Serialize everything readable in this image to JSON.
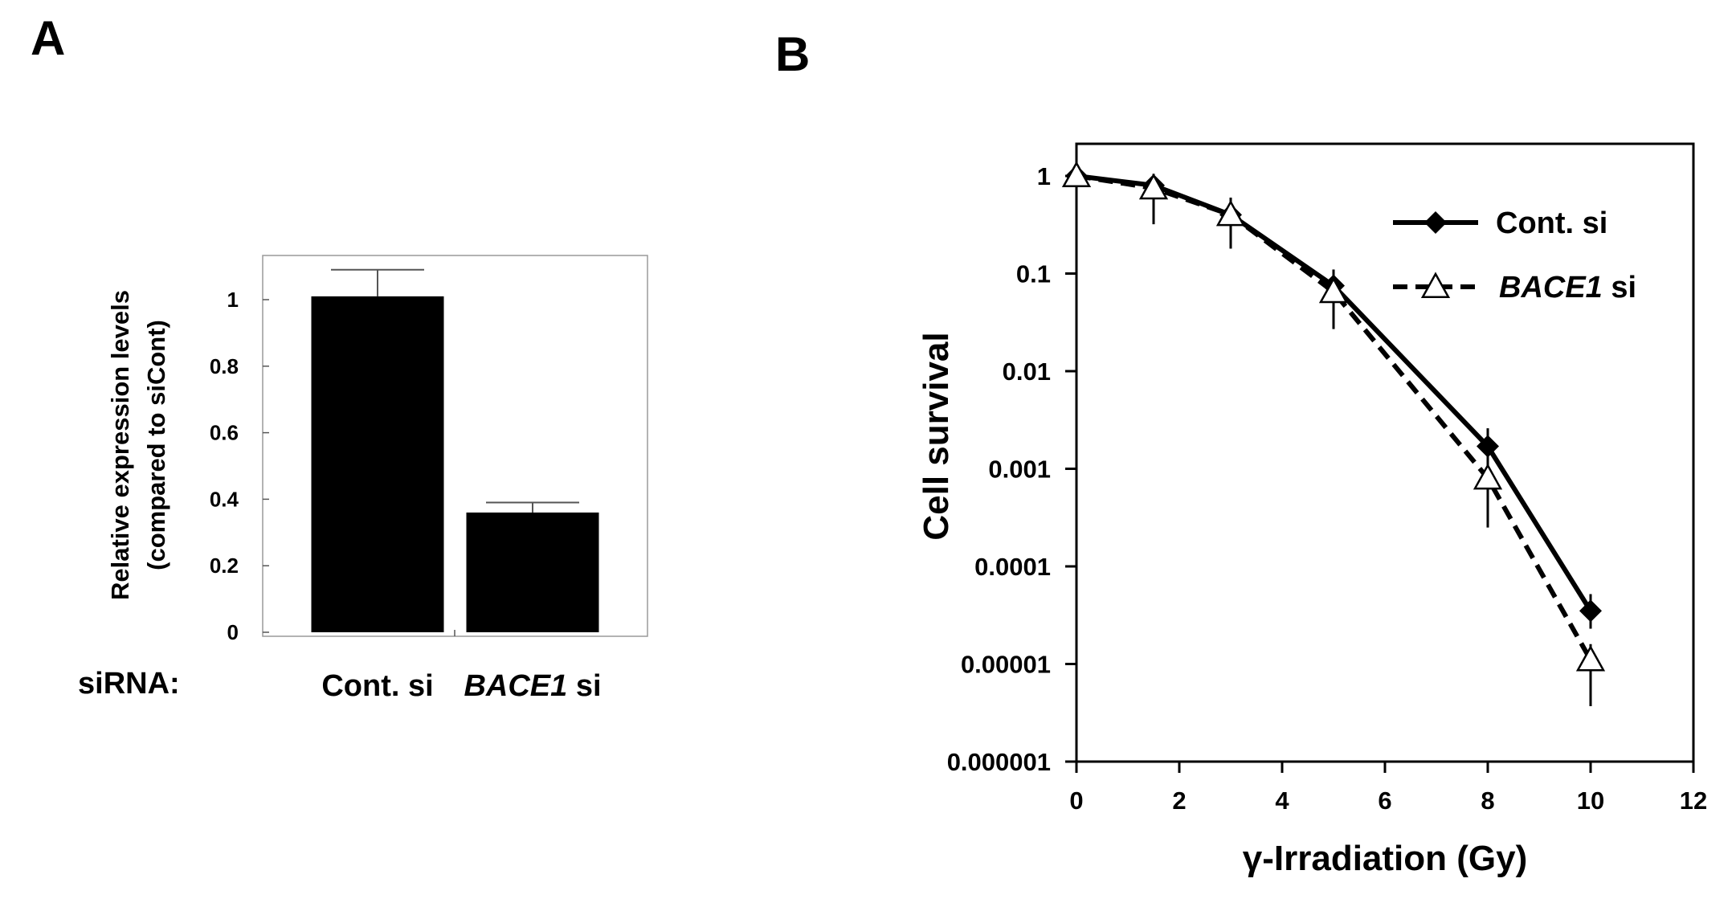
{
  "panels": {
    "A": {
      "letter": "A"
    },
    "B": {
      "letter": "B"
    }
  },
  "chart_data": [
    {
      "panel": "A",
      "type": "bar",
      "ylabel_line1": "Relative expression levels",
      "ylabel_line2": "(compared to siCont)",
      "xlabel": "siRNA:",
      "categories": [
        {
          "italic": "",
          "plain": "Cont. si"
        },
        {
          "italic": "BACE1",
          "plain": " si"
        }
      ],
      "values": [
        1.01,
        0.36
      ],
      "errors": [
        0.08,
        0.03
      ],
      "ylim": [
        0,
        1.1
      ],
      "yticks": [
        0,
        0.2,
        0.4,
        0.6,
        0.8,
        1
      ],
      "ytick_labels": [
        "0",
        "0.2",
        "0.4",
        "0.6",
        "0.8",
        "1"
      ],
      "bar_color": "#000000",
      "grid": false
    },
    {
      "panel": "B",
      "type": "line",
      "xlabel": "γ-Irradiation (Gy)",
      "ylabel": "Cell survival",
      "xlim": [
        0,
        12
      ],
      "xticks": [
        0,
        2,
        4,
        6,
        8,
        10,
        12
      ],
      "ylim": [
        1e-06,
        2
      ],
      "yscale": "log",
      "yticks": [
        1e-06,
        1e-05,
        0.0001,
        0.001,
        0.01,
        0.1,
        1
      ],
      "ytick_labels": [
        "0.000001",
        "0.00001",
        "0.0001",
        "0.001",
        "0.01",
        "0.1",
        "1"
      ],
      "legend_position": "top-right",
      "grid": false,
      "series": [
        {
          "name_italic": "",
          "name_plain": "Cont. si",
          "marker": "filled-diamond",
          "line_style": "solid",
          "color": "#000000",
          "x": [
            0,
            1.5,
            3,
            5,
            8,
            10
          ],
          "y": [
            1,
            0.8,
            0.4,
            0.075,
            0.0017,
            3.5e-05
          ],
          "err_upper": [
            1.1,
            1.05,
            0.55,
            0.11,
            0.0026,
            5.2e-05
          ],
          "err_lower": [
            0.92,
            0.62,
            0.3,
            0.058,
            0.0011,
            2.3e-05
          ]
        },
        {
          "name_italic": "BACE1",
          "name_plain": " si",
          "marker": "open-triangle",
          "line_style": "dashed",
          "color": "#000000",
          "x": [
            0,
            1.5,
            3,
            5,
            8,
            10
          ],
          "y": [
            1,
            0.75,
            0.4,
            0.065,
            0.0008,
            1.1e-05
          ],
          "err_upper": [
            1.1,
            1.0,
            0.6,
            0.09,
            0.0012,
            1.6e-05
          ],
          "err_lower": [
            0.92,
            0.32,
            0.18,
            0.027,
            0.00025,
            3.7e-06
          ]
        }
      ]
    }
  ]
}
